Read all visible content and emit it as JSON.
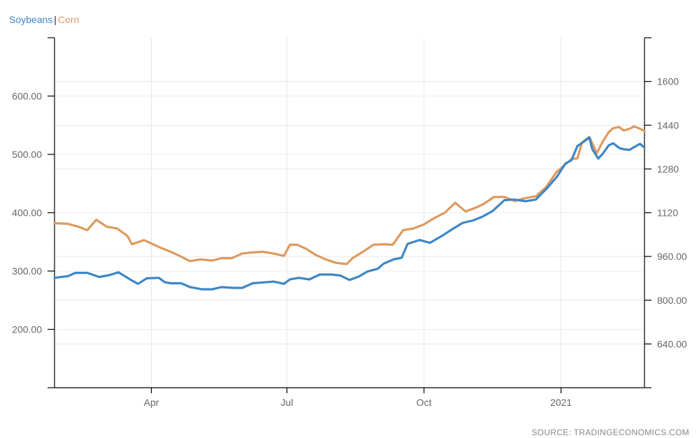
{
  "legend": {
    "series1": "Soybeans",
    "separator": "|",
    "series2": "Corn",
    "series1_color": "#3d86c6",
    "series2_color": "#dd9a5e"
  },
  "source": "SOURCE: TRADINGECONOMICS.COM",
  "chart_data": {
    "type": "line",
    "title": "",
    "x_axis": {
      "type": "date",
      "range": [
        "2020-01-27",
        "2021-02-26"
      ],
      "ticks": [
        {
          "date": "2020-04-01",
          "label": "Apr"
        },
        {
          "date": "2020-07-01",
          "label": "Jul"
        },
        {
          "date": "2020-10-01",
          "label": "Oct"
        },
        {
          "date": "2021-01-01",
          "label": "2021"
        }
      ]
    },
    "y_axis_left": {
      "ylim": [
        100,
        700
      ],
      "ticks": [
        200,
        300,
        400,
        500,
        600
      ],
      "tick_labels": [
        "200.00",
        "300.00",
        "400.00",
        "500.00",
        "600.00"
      ]
    },
    "y_axis_right": {
      "ylim": [
        480,
        1760
      ],
      "ticks": [
        640,
        800,
        960,
        1120,
        1280,
        1440,
        1600
      ],
      "tick_labels": [
        "640.00",
        "800.00",
        "960.00",
        "1120",
        "1280",
        "1440",
        "1600"
      ]
    },
    "grid": true,
    "legend_position": "top-left",
    "series": [
      {
        "name": "Soybeans",
        "axis": "right",
        "color": "#3d86c6",
        "points": [
          [
            "2020-01-27",
            882
          ],
          [
            "2020-02-05",
            888
          ],
          [
            "2020-02-10",
            900
          ],
          [
            "2020-02-18",
            900
          ],
          [
            "2020-02-26",
            885
          ],
          [
            "2020-03-04",
            892
          ],
          [
            "2020-03-10",
            902
          ],
          [
            "2020-03-18",
            875
          ],
          [
            "2020-03-23",
            860
          ],
          [
            "2020-03-29",
            880
          ],
          [
            "2020-04-06",
            882
          ],
          [
            "2020-04-10",
            866
          ],
          [
            "2020-04-14",
            862
          ],
          [
            "2020-04-21",
            862
          ],
          [
            "2020-04-27",
            848
          ],
          [
            "2020-05-05",
            840
          ],
          [
            "2020-05-12",
            840
          ],
          [
            "2020-05-18",
            848
          ],
          [
            "2020-05-26",
            845
          ],
          [
            "2020-06-01",
            845
          ],
          [
            "2020-06-08",
            862
          ],
          [
            "2020-06-15",
            865
          ],
          [
            "2020-06-22",
            868
          ],
          [
            "2020-06-29",
            860
          ],
          [
            "2020-07-03",
            876
          ],
          [
            "2020-07-09",
            882
          ],
          [
            "2020-07-16",
            876
          ],
          [
            "2020-07-23",
            894
          ],
          [
            "2020-07-31",
            894
          ],
          [
            "2020-08-06",
            890
          ],
          [
            "2020-08-12",
            874
          ],
          [
            "2020-08-18",
            886
          ],
          [
            "2020-08-24",
            905
          ],
          [
            "2020-08-31",
            915
          ],
          [
            "2020-09-04",
            934
          ],
          [
            "2020-09-11",
            950
          ],
          [
            "2020-09-16",
            955
          ],
          [
            "2020-09-20",
            1006
          ],
          [
            "2020-09-28",
            1020
          ],
          [
            "2020-10-05",
            1010
          ],
          [
            "2020-10-13",
            1035
          ],
          [
            "2020-10-20",
            1060
          ],
          [
            "2020-10-27",
            1083
          ],
          [
            "2020-11-03",
            1092
          ],
          [
            "2020-11-09",
            1105
          ],
          [
            "2020-11-16",
            1126
          ],
          [
            "2020-11-24",
            1166
          ],
          [
            "2020-12-01",
            1168
          ],
          [
            "2020-12-08",
            1162
          ],
          [
            "2020-12-15",
            1168
          ],
          [
            "2020-12-22",
            1206
          ],
          [
            "2020-12-29",
            1250
          ],
          [
            "2021-01-04",
            1300
          ],
          [
            "2021-01-08",
            1312
          ],
          [
            "2021-01-12",
            1364
          ],
          [
            "2021-01-15",
            1375
          ],
          [
            "2021-01-20",
            1395
          ],
          [
            "2021-01-22",
            1352
          ],
          [
            "2021-01-26",
            1318
          ],
          [
            "2021-01-29",
            1336
          ],
          [
            "2021-02-02",
            1366
          ],
          [
            "2021-02-05",
            1374
          ],
          [
            "2021-02-09",
            1357
          ],
          [
            "2021-02-12",
            1352
          ],
          [
            "2021-02-16",
            1350
          ],
          [
            "2021-02-19",
            1360
          ],
          [
            "2021-02-23",
            1372
          ],
          [
            "2021-02-26",
            1358
          ]
        ]
      },
      {
        "name": "Corn",
        "axis": "left",
        "color": "#dd9a5e",
        "points": [
          [
            "2020-01-27",
            382
          ],
          [
            "2020-02-05",
            381
          ],
          [
            "2020-02-12",
            376
          ],
          [
            "2020-02-18",
            370
          ],
          [
            "2020-02-24",
            388
          ],
          [
            "2020-03-02",
            376
          ],
          [
            "2020-03-09",
            373
          ],
          [
            "2020-03-16",
            360
          ],
          [
            "2020-03-19",
            346
          ],
          [
            "2020-03-27",
            353
          ],
          [
            "2020-04-02",
            346
          ],
          [
            "2020-04-08",
            339
          ],
          [
            "2020-04-14",
            333
          ],
          [
            "2020-04-20",
            326
          ],
          [
            "2020-04-27",
            317
          ],
          [
            "2020-05-04",
            320
          ],
          [
            "2020-05-12",
            318
          ],
          [
            "2020-05-18",
            322
          ],
          [
            "2020-05-25",
            322
          ],
          [
            "2020-06-01",
            330
          ],
          [
            "2020-06-08",
            332
          ],
          [
            "2020-06-15",
            333
          ],
          [
            "2020-06-22",
            330
          ],
          [
            "2020-06-29",
            326
          ],
          [
            "2020-07-03",
            345
          ],
          [
            "2020-07-08",
            345
          ],
          [
            "2020-07-14",
            338
          ],
          [
            "2020-07-20",
            328
          ],
          [
            "2020-07-27",
            320
          ],
          [
            "2020-08-03",
            314
          ],
          [
            "2020-08-10",
            312
          ],
          [
            "2020-08-14",
            322
          ],
          [
            "2020-08-21",
            333
          ],
          [
            "2020-08-28",
            345
          ],
          [
            "2020-09-04",
            346
          ],
          [
            "2020-09-10",
            345
          ],
          [
            "2020-09-17",
            370
          ],
          [
            "2020-09-24",
            373
          ],
          [
            "2020-10-01",
            380
          ],
          [
            "2020-10-08",
            391
          ],
          [
            "2020-10-15",
            400
          ],
          [
            "2020-10-22",
            417
          ],
          [
            "2020-10-29",
            402
          ],
          [
            "2020-11-05",
            409
          ],
          [
            "2020-11-10",
            415
          ],
          [
            "2020-11-17",
            427
          ],
          [
            "2020-11-24",
            427
          ],
          [
            "2020-12-01",
            420
          ],
          [
            "2020-12-08",
            425
          ],
          [
            "2020-12-15",
            428
          ],
          [
            "2020-12-22",
            444
          ],
          [
            "2020-12-29",
            470
          ],
          [
            "2021-01-04",
            483
          ],
          [
            "2021-01-08",
            492
          ],
          [
            "2021-01-12",
            493
          ],
          [
            "2021-01-15",
            520
          ],
          [
            "2021-01-20",
            530
          ],
          [
            "2021-01-25",
            502
          ],
          [
            "2021-01-29",
            522
          ],
          [
            "2021-02-02",
            538
          ],
          [
            "2021-02-05",
            545
          ],
          [
            "2021-02-09",
            547
          ],
          [
            "2021-02-12",
            541
          ],
          [
            "2021-02-16",
            544
          ],
          [
            "2021-02-19",
            548
          ],
          [
            "2021-02-23",
            544
          ],
          [
            "2021-02-26",
            540
          ]
        ]
      }
    ]
  }
}
